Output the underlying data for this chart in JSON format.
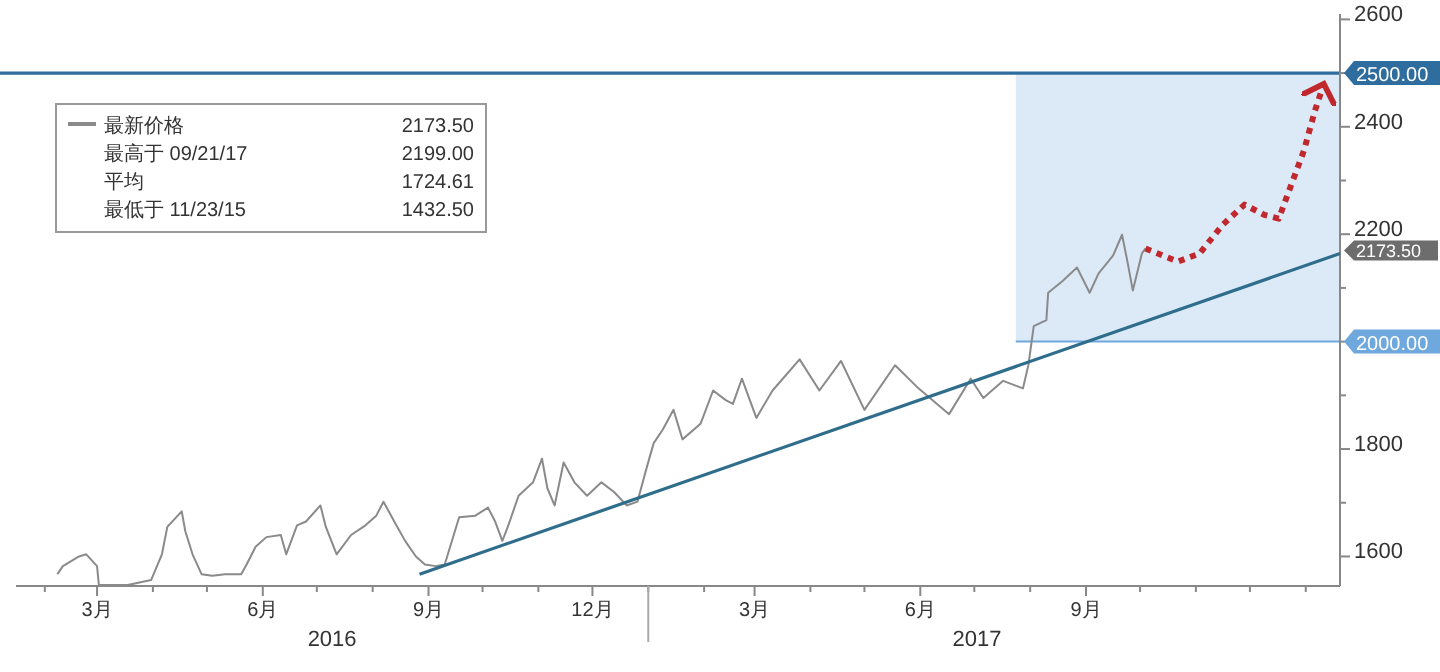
{
  "chart_data": {
    "type": "line",
    "xlim": [
      "2016-01-16",
      "2018-01-20"
    ],
    "ylim": [
      1545,
      2610
    ],
    "xticks": [
      {
        "value": "2016-02",
        "label": null
      },
      {
        "value": "2016-03",
        "label": "3月"
      },
      {
        "value": "2016-04",
        "label": null
      },
      {
        "value": "2016-05",
        "label": null
      },
      {
        "value": "2016-06",
        "label": "6月"
      },
      {
        "value": "2016-07",
        "label": null
      },
      {
        "value": "2016-08",
        "label": null
      },
      {
        "value": "2016-09",
        "label": "9月"
      },
      {
        "value": "2016-10",
        "label": null
      },
      {
        "value": "2016-11",
        "label": null
      },
      {
        "value": "2016-12",
        "label": "12月"
      },
      {
        "value": "2017-01",
        "label": null
      },
      {
        "value": "2017-02",
        "label": null
      },
      {
        "value": "2017-03",
        "label": "3月"
      },
      {
        "value": "2017-04",
        "label": null
      },
      {
        "value": "2017-05",
        "label": null
      },
      {
        "value": "2017-06",
        "label": "6月"
      },
      {
        "value": "2017-07",
        "label": null
      },
      {
        "value": "2017-08",
        "label": null
      },
      {
        "value": "2017-09",
        "label": "9月"
      },
      {
        "value": "2017-10",
        "label": null
      },
      {
        "value": "2017-11",
        "label": null
      },
      {
        "value": "2017-12",
        "label": null
      },
      {
        "value": "2018-01",
        "label": null
      }
    ],
    "yticks": [
      1600,
      {
        "value": 1700,
        "label": null
      },
      1800,
      {
        "value": 1900,
        "label": null
      },
      {
        "value": 2000,
        "label": null
      },
      {
        "value": 2100,
        "label": null
      },
      2200,
      {
        "value": 2300,
        "label": null
      },
      2400,
      {
        "value": 2500,
        "label": null
      },
      2600
    ],
    "grid": false,
    "legend": "top left",
    "series": [
      {
        "name": "最新价格",
        "color": "#8a8a8a",
        "line_style": "solid",
        "x": [
          "2016-02-08",
          "2016-02-11",
          "2016-02-20",
          "2016-02-24",
          "2016-03-01",
          "2016-03-02",
          "2016-03-18",
          "2016-03-31",
          "2016-04-06",
          "2016-04-09",
          "2016-04-17",
          "2016-04-19",
          "2016-04-23",
          "2016-04-28",
          "2016-05-04",
          "2016-05-11",
          "2016-05-20",
          "2016-05-23",
          "2016-05-28",
          "2016-06-03",
          "2016-06-11",
          "2016-06-14",
          "2016-06-20",
          "2016-06-25",
          "2016-07-03",
          "2016-07-06",
          "2016-07-12",
          "2016-07-20",
          "2016-07-28",
          "2016-08-03",
          "2016-08-07",
          "2016-08-13",
          "2016-08-19",
          "2016-08-25",
          "2016-08-30",
          "2016-09-05",
          "2016-09-10",
          "2016-09-15",
          "2016-09-18",
          "2016-09-27",
          "2016-10-04",
          "2016-10-08",
          "2016-10-12",
          "2016-10-15",
          "2016-10-21",
          "2016-10-29",
          "2016-11-03",
          "2016-11-06",
          "2016-11-10",
          "2016-11-15",
          "2016-11-21",
          "2016-11-28",
          "2016-12-06",
          "2016-12-13",
          "2016-12-20",
          "2016-12-26",
          "2016-12-31",
          "2017-01-04",
          "2017-01-09",
          "2017-01-15",
          "2017-01-20",
          "2017-01-30",
          "2017-02-06",
          "2017-02-13",
          "2017-02-17",
          "2017-02-22",
          "2017-03-02",
          "2017-03-11",
          "2017-03-26",
          "2017-04-06",
          "2017-04-18",
          "2017-05-01",
          "2017-05-18",
          "2017-05-31",
          "2017-06-17",
          "2017-06-29",
          "2017-07-06",
          "2017-07-17",
          "2017-07-28",
          "2017-07-31",
          "2017-08-03",
          "2017-08-10",
          "2017-08-11",
          "2017-08-19",
          "2017-08-27",
          "2017-09-03",
          "2017-09-08",
          "2017-09-16",
          "2017-09-21",
          "2017-09-24",
          "2017-09-27",
          "2017-10-02",
          "2017-10-04"
        ],
        "values": [
          1567,
          1582,
          1600,
          1604,
          1582,
          1547,
          1547,
          1556,
          1604,
          1655,
          1684,
          1647,
          1604,
          1567,
          1564,
          1567,
          1567,
          1585,
          1618,
          1636,
          1640,
          1604,
          1658,
          1665,
          1695,
          1655,
          1604,
          1640,
          1658,
          1676,
          1702,
          1665,
          1629,
          1600,
          1585,
          1582,
          1585,
          1640,
          1673,
          1676,
          1691,
          1665,
          1629,
          1655,
          1713,
          1738,
          1782,
          1727,
          1695,
          1775,
          1738,
          1713,
          1738,
          1720,
          1695,
          1702,
          1764,
          1811,
          1836,
          1873,
          1818,
          1847,
          1909,
          1891,
          1884,
          1931,
          1858,
          1909,
          1967,
          1909,
          1964,
          1873,
          1956,
          1913,
          1865,
          1931,
          1895,
          1927,
          1913,
          1956,
          2029,
          2040,
          2091,
          2113,
          2138,
          2091,
          2127,
          2160,
          2199,
          2149,
          2095,
          2164,
          2173.5
        ]
      },
      {
        "color": "#2f6d8c",
        "line_style": "solid",
        "x": [
          "2016-08-27",
          "2018-01-20"
        ],
        "values": [
          1567,
          2164
        ]
      },
      {
        "color": "#c0282d",
        "line_style": "dotted",
        "x": [
          "2017-10-04",
          "2017-10-22",
          "2017-11-03",
          "2017-11-16",
          "2017-11-28",
          "2017-12-09",
          "2017-12-17",
          "2017-12-31",
          "2018-01-06",
          "2018-01-11"
        ],
        "values": [
          2173.5,
          2149,
          2164,
          2218,
          2255,
          2236,
          2229,
          2356,
          2429,
          2480
        ]
      }
    ],
    "ref_lines": [
      {
        "axis": "y",
        "value": 2500,
        "label": "2500.00",
        "color": "#2f6d9e"
      },
      {
        "axis": "y",
        "value": 2000,
        "label": "2000.00",
        "color": "#6fa8dc"
      }
    ],
    "bands": [
      {
        "axis": "x",
        "from": "2017-07-24",
        "to": "2018-01-20",
        "color": "#dceaf8"
      }
    ],
    "annotations": [
      "2173.50",
      "最高于 09/21/17",
      "2199.00",
      "平均",
      "1724.61",
      "最低于 11/23/15",
      "1432.50",
      "2173.50",
      "2016",
      "2017"
    ]
  }
}
